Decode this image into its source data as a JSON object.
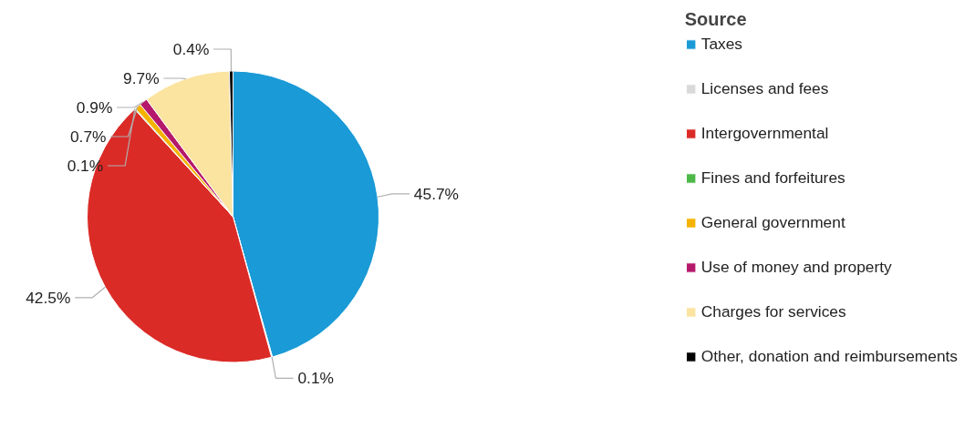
{
  "chart_data": {
    "type": "pie",
    "legend_title": "Source",
    "categories": [
      "Taxes",
      "Licenses and fees",
      "Intergovernmental",
      "Fines and forfeitures",
      "General government",
      "Use of money and property",
      "Charges for services",
      "Other, donation and reimbursements"
    ],
    "values": [
      45.7,
      0.1,
      42.5,
      0.1,
      0.7,
      0.9,
      9.7,
      0.4
    ],
    "colors": [
      "#1a9ad6",
      "#d9d9d9",
      "#db2b27",
      "#4cb848",
      "#f5b300",
      "#b5196b",
      "#fbe3a0",
      "#000000"
    ],
    "value_labels": [
      "45.7%",
      "0.1%",
      "42.5%",
      "0.1%",
      "0.7%",
      "0.9%",
      "9.7%",
      "0.4%"
    ],
    "legend": "right"
  }
}
